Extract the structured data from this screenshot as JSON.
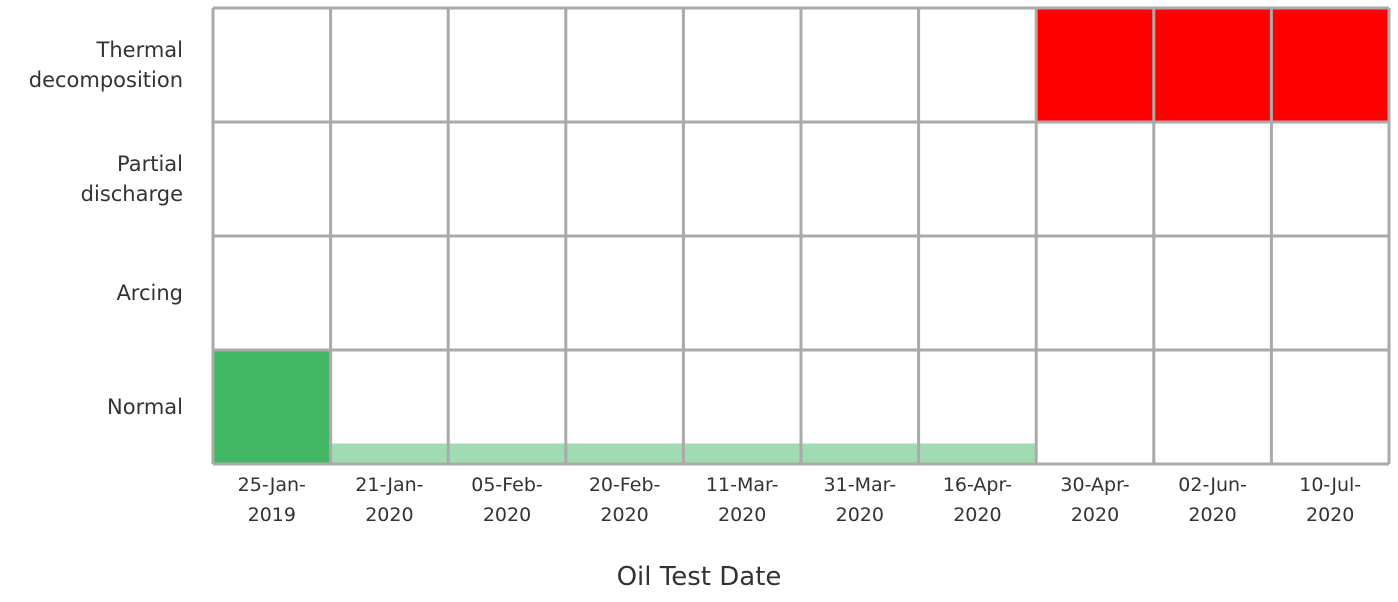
{
  "chart_data": {
    "type": "heatmap",
    "xlabel": "Oil Test Date",
    "categories": [
      "25-Jan-2019",
      "21-Jan-2020",
      "05-Feb-2020",
      "20-Feb-2020",
      "11-Mar-2020",
      "31-Mar-2020",
      "16-Apr-2020",
      "30-Apr-2020",
      "02-Jun-2020",
      "10-Jul-2020"
    ],
    "series": [
      {
        "name": "Thermal decomposition",
        "color": "#ff0000",
        "values": [
          0,
          0,
          0,
          0,
          0,
          0,
          0,
          1,
          1,
          1
        ]
      },
      {
        "name": "Partial discharge",
        "color": "#ff0000",
        "values": [
          0,
          0,
          0,
          0,
          0,
          0,
          0,
          0,
          0,
          0
        ]
      },
      {
        "name": "Arcing",
        "color": "#ff0000",
        "values": [
          0,
          0,
          0,
          0,
          0,
          0,
          0,
          0,
          0,
          0
        ]
      },
      {
        "name": "Normal",
        "color": "#43b864",
        "values": [
          1,
          0.18,
          0.18,
          0.18,
          0.18,
          0.18,
          0.18,
          0,
          0,
          0
        ]
      }
    ]
  }
}
